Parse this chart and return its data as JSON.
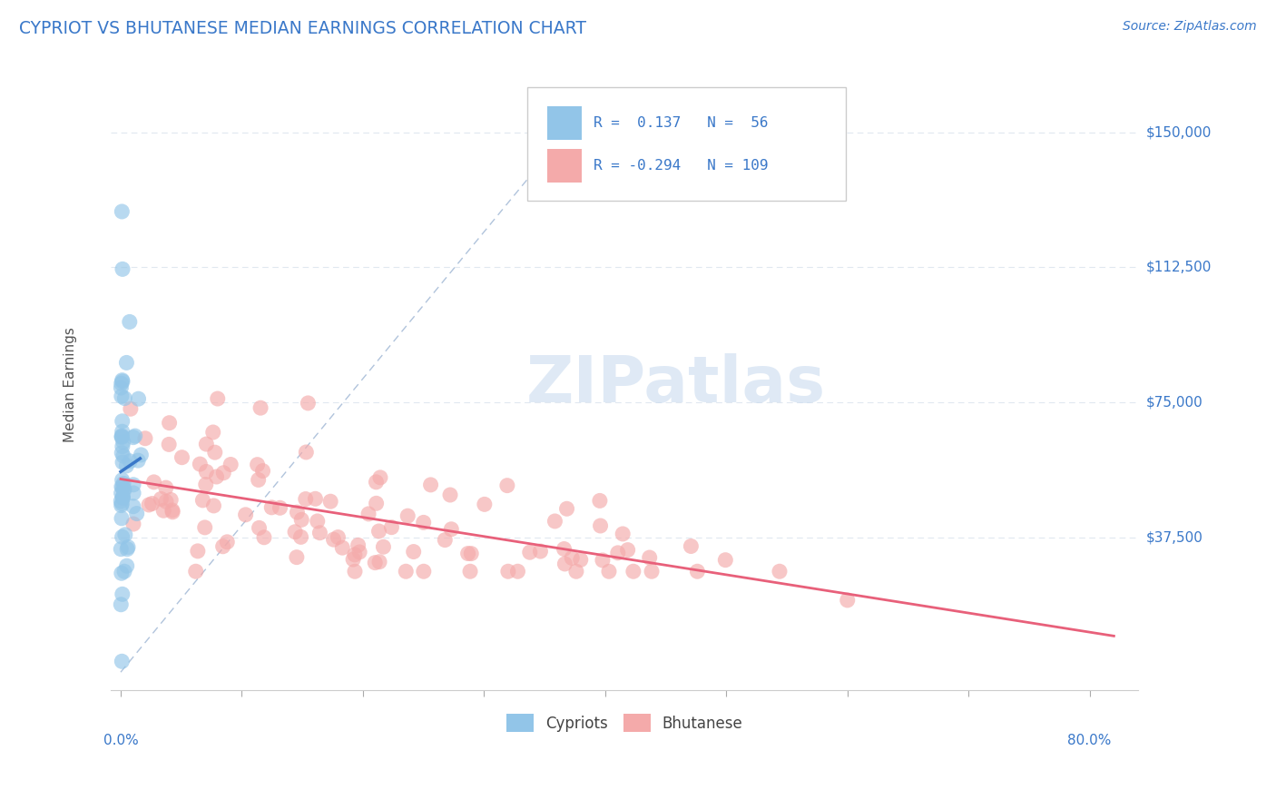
{
  "title": "CYPRIOT VS BHUTANESE MEDIAN EARNINGS CORRELATION CHART",
  "source": "Source: ZipAtlas.com",
  "ylabel": "Median Earnings",
  "yticks_labels": [
    "$37,500",
    "$75,000",
    "$112,500",
    "$150,000"
  ],
  "yticks_values": [
    37500,
    75000,
    112500,
    150000
  ],
  "ymin": -5000,
  "ymax": 165000,
  "xmin": -0.008,
  "xmax": 0.84,
  "legend_r_cypriot": "R =  0.137   N =  56",
  "legend_r_bhutanese": "R = -0.294   N = 109",
  "cypriot_color": "#92C5E8",
  "bhutanese_color": "#F4AAAA",
  "cypriot_line_color": "#3A78C9",
  "bhutanese_line_color": "#E8607A",
  "diagonal_color": "#A8BDD8",
  "background_color": "#ffffff",
  "title_color": "#3A78C9",
  "source_color": "#3A78C9",
  "axis_label_color": "#555555",
  "watermark_color": "#C5D8EE",
  "watermark": "ZIPatlas",
  "grid_color": "#E0E8F0"
}
